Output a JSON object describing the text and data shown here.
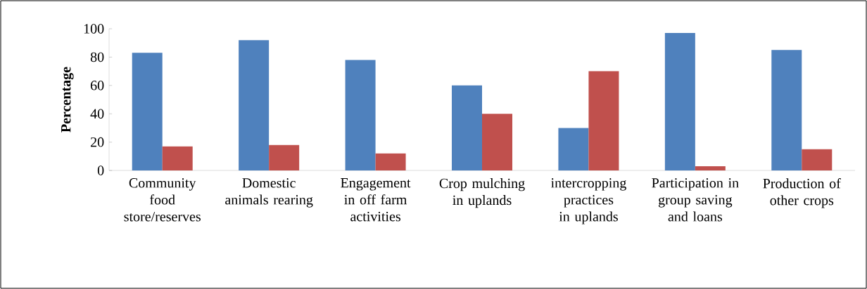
{
  "chart_data": {
    "type": "bar",
    "ylabel": "**Percentage**",
    "categories": [
      "Community food store/reserves",
      "Domestic animals rearing",
      "Engagement in off farm activities",
      "Crop mulching in uplands",
      "intercropping practices in uplands",
      "Participation in group saving and loans",
      "Production of other crops"
    ],
    "series": [
      {
        "color": "#4f81bd",
        "values": [
          83,
          92,
          78,
          60,
          30,
          97,
          85
        ]
      },
      {
        "color": "#c0504d",
        "values": [
          17,
          18,
          12,
          40,
          70,
          3,
          15
        ]
      }
    ],
    "ylim": [
      0,
      100
    ],
    "yticks": [
      0,
      20,
      40,
      60,
      80,
      100
    ],
    "grid": false
  }
}
